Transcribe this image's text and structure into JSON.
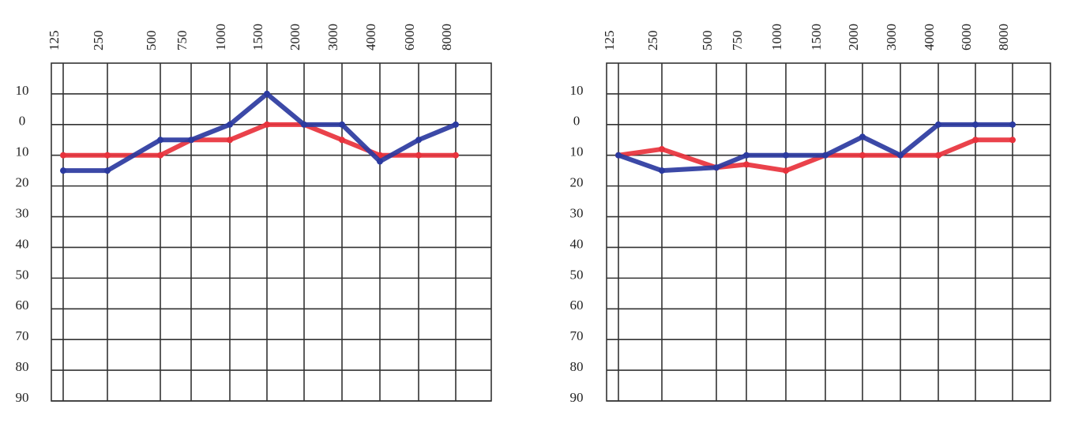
{
  "chart_data": [
    {
      "type": "line",
      "categories": [
        "125",
        "250",
        "500",
        "750",
        "1000",
        "1500",
        "2000",
        "3000",
        "4000",
        "6000",
        "8000"
      ],
      "series": [
        {
          "name": null,
          "color": "#e8323c",
          "values": [
            10,
            10,
            10,
            5,
            5,
            0,
            0,
            5,
            10,
            10,
            10
          ]
        },
        {
          "name": null,
          "color": "#2b3aa0",
          "values": [
            15,
            15,
            5,
            5,
            0,
            -10,
            0,
            0,
            12,
            5,
            0
          ]
        }
      ],
      "ylim": [
        -20,
        90
      ],
      "y_inverted": true,
      "yticks": [
        {
          "value": -10,
          "label": "10"
        },
        0,
        10,
        20,
        30,
        40,
        50,
        60,
        70,
        80,
        90
      ],
      "grid": true
    },
    {
      "type": "line",
      "categories": [
        "125",
        "250",
        "500",
        "750",
        "1000",
        "1500",
        "2000",
        "3000",
        "4000",
        "6000",
        "8000"
      ],
      "series": [
        {
          "name": null,
          "color": "#e8323c",
          "values": [
            10,
            8,
            14,
            13,
            15,
            10,
            10,
            10,
            10,
            5,
            5
          ]
        },
        {
          "name": null,
          "color": "#2b3aa0",
          "values": [
            10,
            15,
            14,
            10,
            10,
            10,
            4,
            10,
            0,
            0,
            0
          ]
        }
      ],
      "ylim": [
        -20,
        90
      ],
      "y_inverted": true,
      "yticks": [
        {
          "value": -10,
          "label": "10"
        },
        0,
        10,
        20,
        30,
        40,
        50,
        60,
        70,
        80,
        90
      ],
      "grid": true
    }
  ]
}
